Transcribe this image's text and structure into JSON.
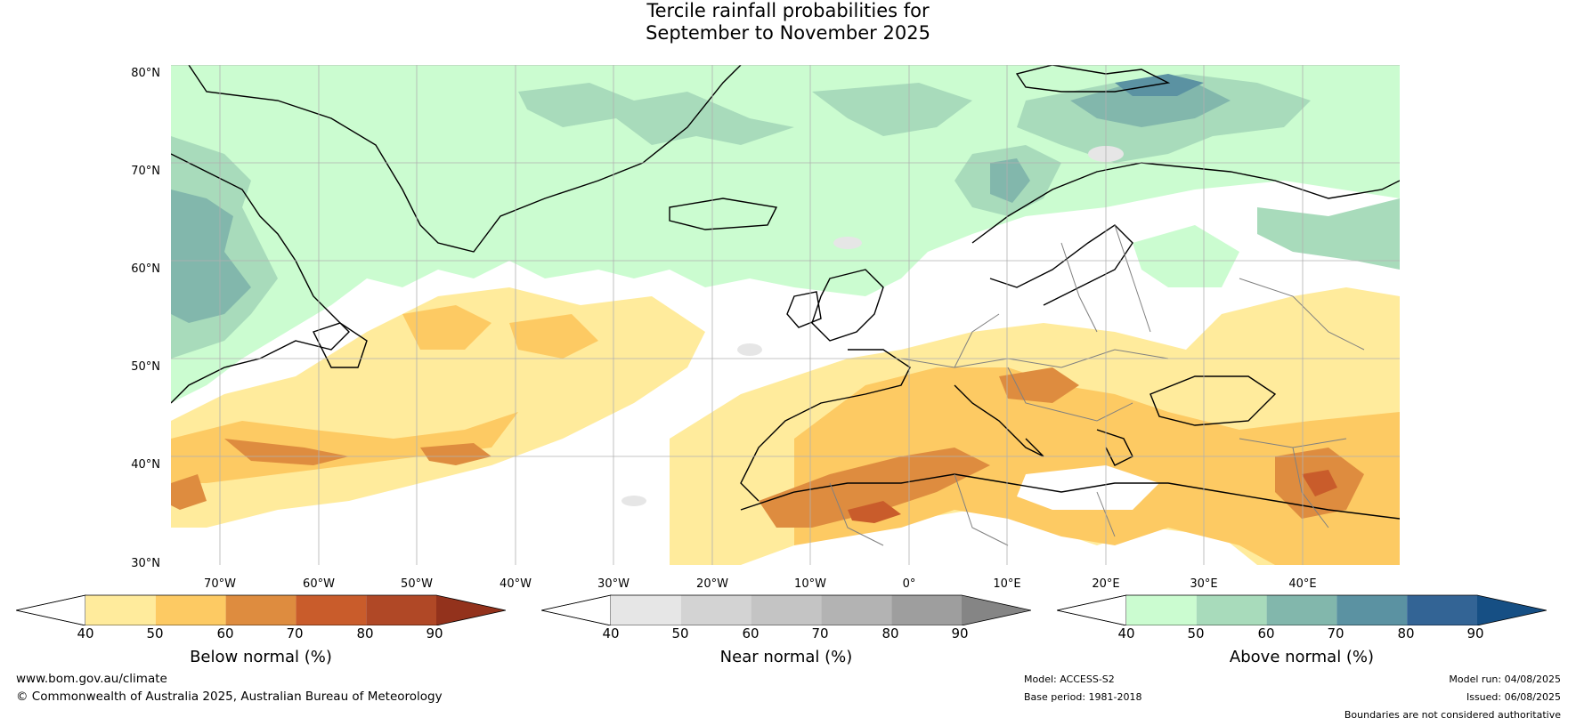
{
  "title": {
    "line1": "Tercile rainfall probabilities for",
    "line2": "September to November 2025"
  },
  "map": {
    "latitude_labels": [
      "80°N",
      "70°N",
      "60°N",
      "50°N",
      "40°N",
      "30°N"
    ],
    "longitude_labels": [
      "70°W",
      "60°W",
      "50°W",
      "40°W",
      "30°W",
      "20°W",
      "10°W",
      "0°",
      "10°E",
      "20°E",
      "30°E",
      "40°E"
    ],
    "colors": {
      "land_outline": "#000000",
      "borders": "#808080",
      "gridlines": "#b0b0b0"
    }
  },
  "colorbars": [
    {
      "label": "Below normal (%)",
      "ticks": [
        "40",
        "50",
        "60",
        "70",
        "80",
        "90"
      ],
      "colors": [
        "#ffffff",
        "#ffeb9c",
        "#fdca63",
        "#de8c3f",
        "#c95c2b",
        "#b04826",
        "#93321c"
      ]
    },
    {
      "label": "Near normal (%)",
      "ticks": [
        "40",
        "50",
        "60",
        "70",
        "80",
        "90"
      ],
      "colors": [
        "#ffffff",
        "#e6e6e6",
        "#d3d3d3",
        "#c4c4c4",
        "#b3b3b3",
        "#9e9e9e",
        "#858585"
      ]
    },
    {
      "label": "Above normal (%)",
      "ticks": [
        "40",
        "50",
        "60",
        "70",
        "80",
        "90"
      ],
      "colors": [
        "#ffffff",
        "#cbfcd0",
        "#a8dbbb",
        "#82b7ac",
        "#5b92a2",
        "#336495",
        "#164f84"
      ]
    }
  ],
  "footer": {
    "website": "www.bom.gov.au/climate",
    "copyright": "© Commonwealth of Australia 2025, Australian Bureau of Meteorology",
    "model": "Model: ACCESS-S2",
    "base_period": "Base period: 1981-2018",
    "model_run": "Model run: 04/08/2025",
    "issued": "Issued: 06/08/2025",
    "disclaimer": "Boundaries are not considered authoritative"
  }
}
